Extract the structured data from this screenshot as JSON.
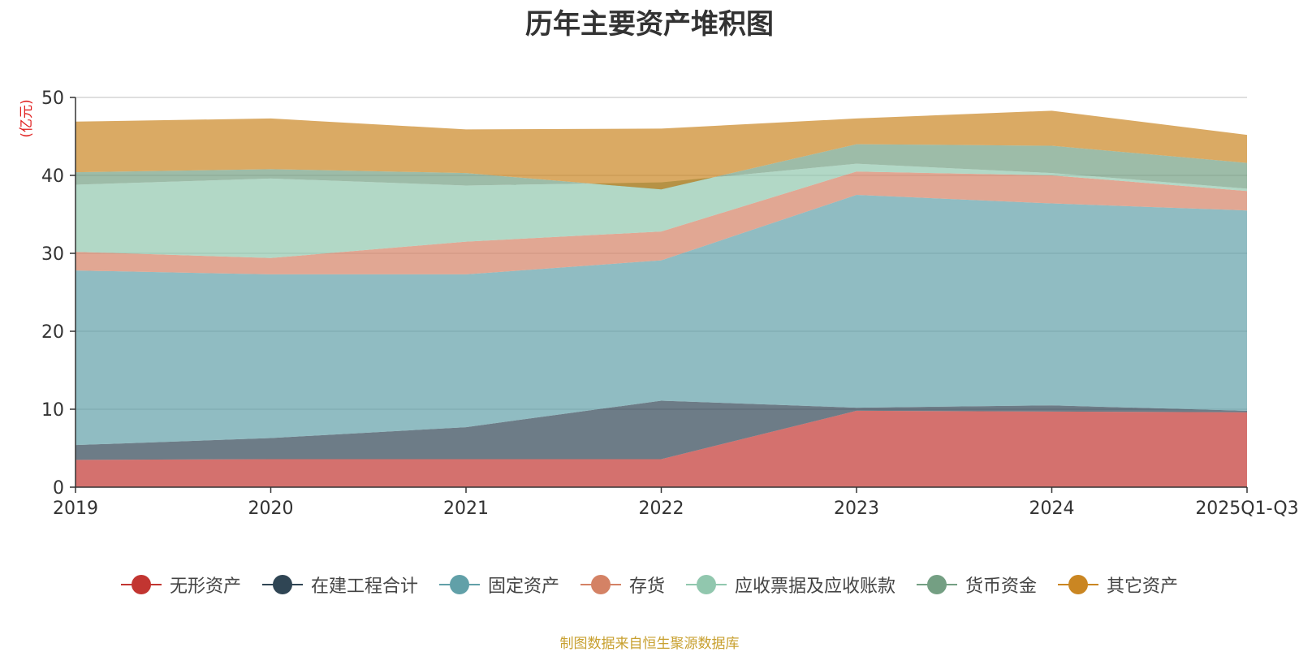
{
  "chart_data": {
    "type": "area",
    "stacked": true,
    "title": "历年主要资产堆积图",
    "ylabel": "(亿元)",
    "ylim": [
      0,
      50
    ],
    "yticks": [
      "0",
      "10",
      "20",
      "30",
      "40",
      "50"
    ],
    "categories": [
      "2019",
      "2020",
      "2021",
      "2022",
      "2023",
      "2024",
      "2025Q1-Q3"
    ],
    "series": [
      {
        "name": "无形资产",
        "color": "#c23531",
        "values": [
          3.5,
          3.6,
          3.6,
          3.6,
          9.8,
          9.7,
          9.6
        ]
      },
      {
        "name": "在建工程合计",
        "color": "#2f4554",
        "values": [
          1.9,
          2.7,
          4.1,
          7.5,
          0.4,
          0.8,
          0.2
        ]
      },
      {
        "name": "固定资产",
        "color": "#61a0a8",
        "values": [
          22.4,
          21.0,
          19.6,
          18.0,
          27.3,
          25.9,
          25.7
        ]
      },
      {
        "name": "存货",
        "color": "#d48265",
        "values": [
          2.4,
          2.1,
          4.2,
          3.7,
          3.0,
          3.6,
          2.5
        ]
      },
      {
        "name": "应收票据及应收账款",
        "color": "#91c7ae",
        "values": [
          8.6,
          10.2,
          7.2,
          6.3,
          1.0,
          0.3,
          0.3
        ]
      },
      {
        "name": "货币资金",
        "color": "#749f83",
        "values": [
          1.6,
          1.2,
          1.6,
          -0.9,
          2.5,
          3.5,
          3.3
        ]
      },
      {
        "name": "其它资产",
        "color": "#ca8622",
        "values": [
          6.5,
          6.5,
          5.6,
          7.8,
          3.3,
          4.5,
          3.6
        ]
      }
    ],
    "grid": true,
    "legend_position": "bottom"
  },
  "source_note": "制图数据来自恒生聚源数据库",
  "colors": {
    "title": "#333333",
    "axis": "#333333",
    "ylabel": "#e02020",
    "gridline": "#cccccc",
    "source": "#c8a030"
  }
}
